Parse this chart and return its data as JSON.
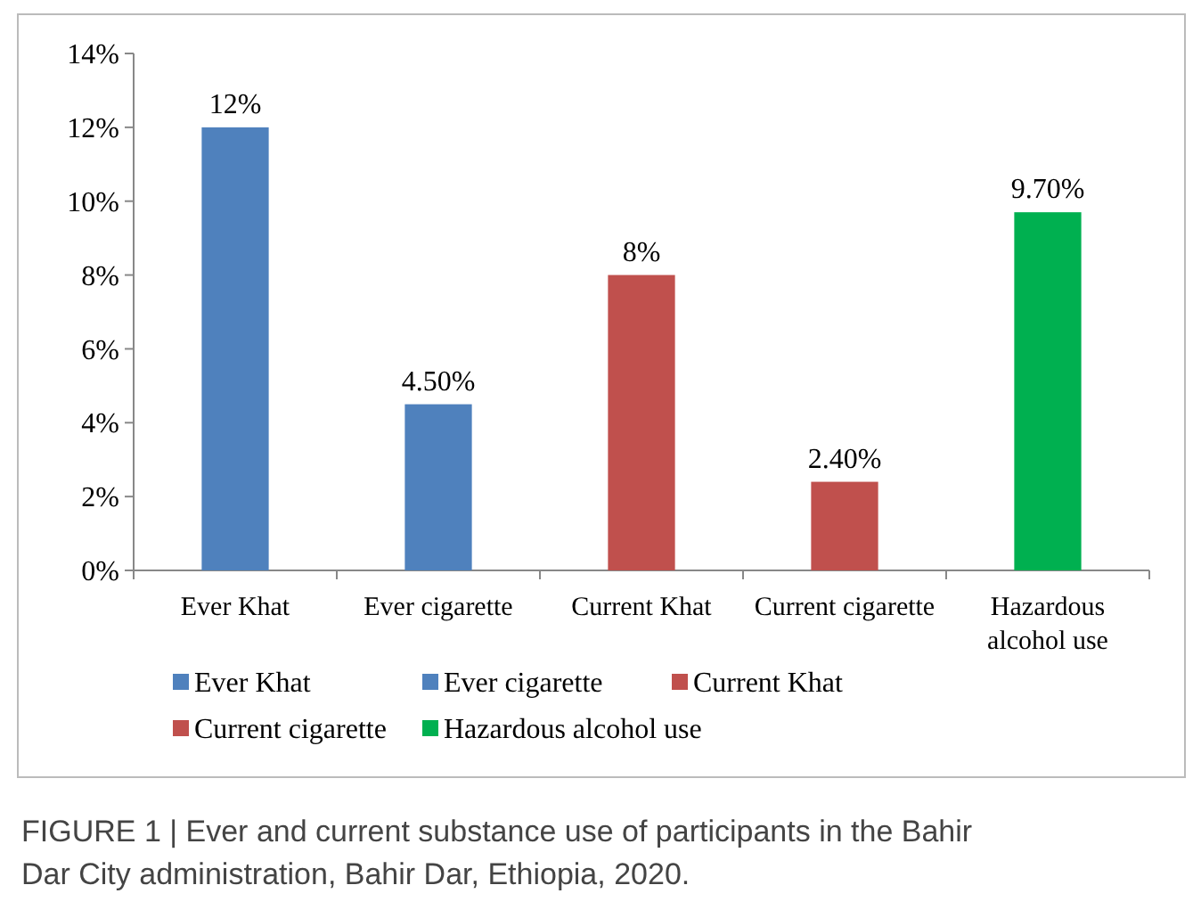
{
  "chart_data": {
    "type": "bar",
    "categories": [
      "Ever Khat",
      "Ever cigarette",
      "Current Khat",
      "Current cigarette",
      "Hazardous alcohol use"
    ],
    "series": [
      {
        "name": "Ever Khat",
        "color": "#4f81bd",
        "values": [
          12,
          null,
          null,
          null,
          null
        ],
        "value_labels": [
          "12%",
          null,
          null,
          null,
          null
        ]
      },
      {
        "name": "Ever cigarette",
        "color": "#4f81bd",
        "values": [
          null,
          4.5,
          null,
          null,
          null
        ],
        "value_labels": [
          null,
          "4.50%",
          null,
          null,
          null
        ]
      },
      {
        "name": "Current Khat",
        "color": "#c0504d",
        "values": [
          null,
          null,
          8,
          null,
          null
        ],
        "value_labels": [
          null,
          null,
          "8%",
          null,
          null
        ]
      },
      {
        "name": "Current cigarette",
        "color": "#c0504d",
        "values": [
          null,
          null,
          null,
          2.4,
          null
        ],
        "value_labels": [
          null,
          null,
          null,
          "2.40%",
          null
        ]
      },
      {
        "name": "Hazardous alcohol use",
        "color": "#00b050",
        "values": [
          null,
          null,
          null,
          null,
          9.7
        ],
        "value_labels": [
          null,
          null,
          null,
          null,
          "9.70%"
        ]
      }
    ],
    "ylim": [
      0,
      14
    ],
    "yticks": [
      {
        "value": 0,
        "label": "0%"
      },
      {
        "value": 2,
        "label": "2%"
      },
      {
        "value": 4,
        "label": "4%"
      },
      {
        "value": 6,
        "label": "6%"
      },
      {
        "value": 8,
        "label": "8%"
      },
      {
        "value": 10,
        "label": "10%"
      },
      {
        "value": 12,
        "label": "12%"
      },
      {
        "value": 14,
        "label": "14%"
      }
    ],
    "grid": false,
    "legend": "bottom",
    "annotations": [
      "FIGURE 1 | Ever and current substance use of participants in the Bahir Dar City administration, Bahir Dar, Ethiopia, 2020."
    ]
  }
}
